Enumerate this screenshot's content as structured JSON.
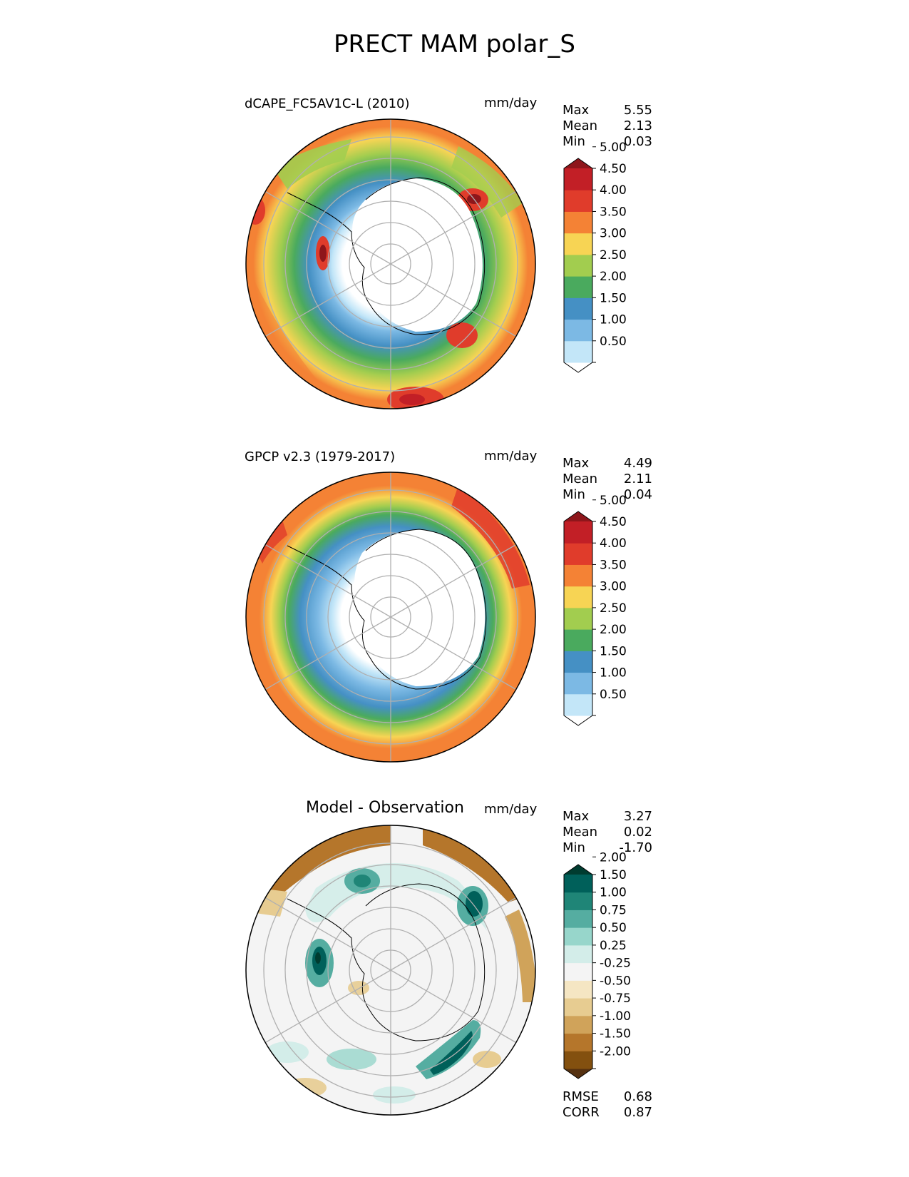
{
  "title": "PRECT MAM polar_S",
  "panels": [
    {
      "id": "test",
      "title_left": "dCAPE_FC5AV1C-L (2010)",
      "title_center": "",
      "units": "mm/day",
      "stats": [
        {
          "label": "Max",
          "value": "5.55"
        },
        {
          "label": "Mean",
          "value": "2.13"
        },
        {
          "label": "Min",
          "value": "0.03"
        }
      ],
      "colorbar": {
        "ticks": [
          "0.50",
          "1.00",
          "1.50",
          "2.00",
          "2.50",
          "3.00",
          "3.50",
          "4.00",
          "4.50",
          "5.00"
        ],
        "colors": [
          "#ffffff",
          "#c3e6f8",
          "#7cb9e4",
          "#4590c4",
          "#4aaa5e",
          "#a2cd4f",
          "#f7d454",
          "#f48235",
          "#e03c2b",
          "#c21f26",
          "#8e161b"
        ],
        "extend": "both"
      }
    },
    {
      "id": "reference",
      "title_left": "GPCP v2.3 (1979-2017)",
      "title_center": "",
      "units": "mm/day",
      "stats": [
        {
          "label": "Max",
          "value": "4.49"
        },
        {
          "label": "Mean",
          "value": "2.11"
        },
        {
          "label": "Min",
          "value": "0.04"
        }
      ],
      "colorbar": {
        "ticks": [
          "0.50",
          "1.00",
          "1.50",
          "2.00",
          "2.50",
          "3.00",
          "3.50",
          "4.00",
          "4.50",
          "5.00"
        ],
        "colors": [
          "#ffffff",
          "#c3e6f8",
          "#7cb9e4",
          "#4590c4",
          "#4aaa5e",
          "#a2cd4f",
          "#f7d454",
          "#f48235",
          "#e03c2b",
          "#c21f26",
          "#8e161b"
        ],
        "extend": "both"
      }
    },
    {
      "id": "diff",
      "title_left": "",
      "title_center": "Model - Observation",
      "units": "mm/day",
      "stats": [
        {
          "label": "Max",
          "value": "3.27"
        },
        {
          "label": "Mean",
          "value": "0.02"
        },
        {
          "label": "Min",
          "value": "-1.70"
        }
      ],
      "extra_stats": [
        {
          "label": "RMSE",
          "value": "0.68"
        },
        {
          "label": "CORR",
          "value": "0.87"
        }
      ],
      "colorbar": {
        "ticks": [
          "-2.00",
          "-1.50",
          "-1.00",
          "-0.75",
          "-0.50",
          "-0.25",
          "0.25",
          "0.50",
          "0.75",
          "1.00",
          "1.50",
          "2.00"
        ],
        "colors": [
          "#553110",
          "#83500f",
          "#b5762b",
          "#d0a35a",
          "#e7cc91",
          "#f5e6c3",
          "#f4f4f4",
          "#d3ede9",
          "#97d6cb",
          "#55ada1",
          "#1f8577",
          "#00605a",
          "#003c30"
        ],
        "extend": "both"
      }
    }
  ]
}
